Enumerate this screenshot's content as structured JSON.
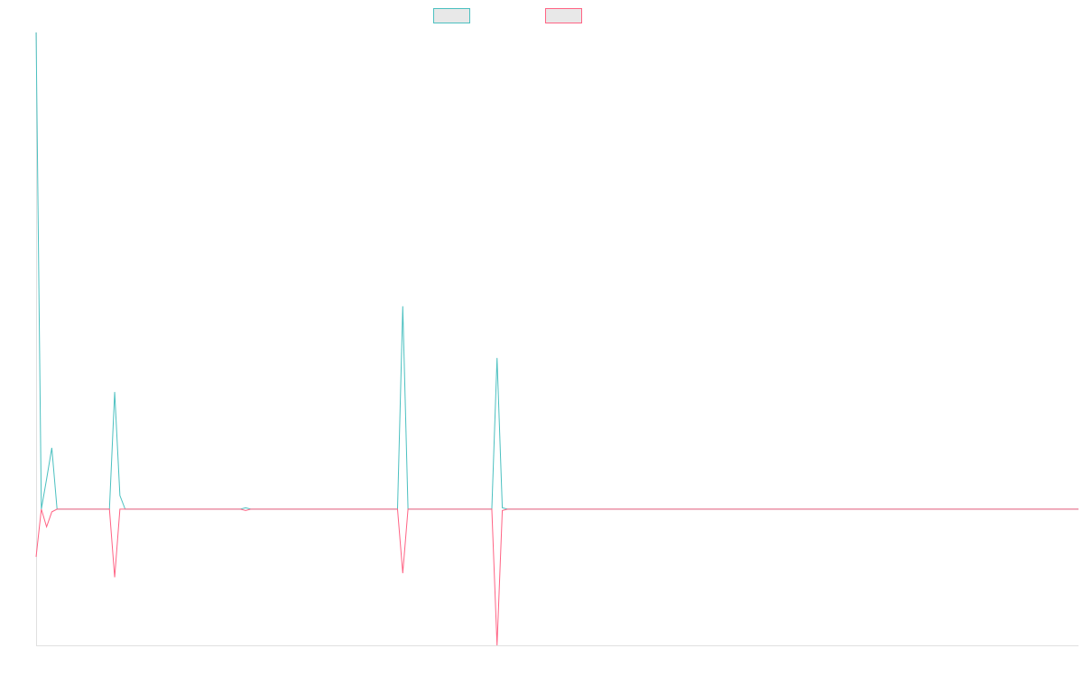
{
  "chart_data": {
    "type": "line",
    "ylim": [
      -1,
      3.5
    ],
    "series": [
      {
        "color": "#4bc0c0",
        "values": [
          3.5,
          0,
          0.22,
          0.45,
          0,
          0,
          0,
          0,
          0,
          0,
          0,
          0,
          0,
          0,
          0,
          0.86,
          0.1,
          0,
          0,
          0,
          0,
          0,
          0,
          0,
          0,
          0,
          0,
          0,
          0,
          0,
          0,
          0,
          0,
          0,
          0,
          0,
          0,
          0,
          0,
          0,
          0.01,
          0,
          0,
          0,
          0,
          0,
          0,
          0,
          0,
          0,
          0,
          0,
          0,
          0,
          0,
          0,
          0,
          0,
          0,
          0,
          0,
          0,
          0,
          0,
          0,
          0,
          0,
          0,
          0,
          0,
          1.49,
          0,
          0,
          0,
          0,
          0,
          0,
          0,
          0,
          0,
          0,
          0,
          0,
          0,
          0,
          0,
          0,
          0,
          1.11,
          0.01,
          0,
          0,
          0,
          0,
          0,
          0,
          0,
          0,
          0,
          0,
          0,
          0,
          0,
          0,
          0,
          0,
          0,
          0,
          0,
          0,
          0,
          0,
          0,
          0,
          0,
          0,
          0,
          0,
          0,
          0,
          0,
          0,
          0,
          0,
          0,
          0,
          0,
          0,
          0,
          0,
          0,
          0,
          0,
          0,
          0,
          0,
          0,
          0,
          0,
          0,
          0,
          0,
          0,
          0,
          0,
          0,
          0,
          0,
          0,
          0,
          0,
          0,
          0,
          0,
          0,
          0,
          0,
          0,
          0,
          0,
          0,
          0,
          0,
          0,
          0,
          0,
          0,
          0,
          0,
          0,
          0,
          0,
          0,
          0,
          0,
          0,
          0,
          0,
          0,
          0,
          0,
          0,
          0,
          0,
          0,
          0,
          0,
          0,
          0,
          0,
          0,
          0,
          0,
          0,
          0,
          0,
          0,
          0,
          0,
          0
        ]
      },
      {
        "color": "#ff6384",
        "values": [
          -0.35,
          0,
          -0.13,
          -0.02,
          0,
          0,
          0,
          0,
          0,
          0,
          0,
          0,
          0,
          0,
          0,
          -0.5,
          0,
          0,
          0,
          0,
          0,
          0,
          0,
          0,
          0,
          0,
          0,
          0,
          0,
          0,
          0,
          0,
          0,
          0,
          0,
          0,
          0,
          0,
          0,
          0,
          -0.01,
          0,
          0,
          0,
          0,
          0,
          0,
          0,
          0,
          0,
          0,
          0,
          0,
          0,
          0,
          0,
          0,
          0,
          0,
          0,
          0,
          0,
          0,
          0,
          0,
          0,
          0,
          0,
          0,
          0,
          -0.47,
          0,
          0,
          0,
          0,
          0,
          0,
          0,
          0,
          0,
          0,
          0,
          0,
          0,
          0,
          0,
          0,
          0,
          -1.0,
          -0.01,
          0,
          0,
          0,
          0,
          0,
          0,
          0,
          0,
          0,
          0,
          0,
          0,
          0,
          0,
          0,
          0,
          0,
          0,
          0,
          0,
          0,
          0,
          0,
          0,
          0,
          0,
          0,
          0,
          0,
          0,
          0,
          0,
          0,
          0,
          0,
          0,
          0,
          0,
          0,
          0,
          0,
          0,
          0,
          0,
          0,
          0,
          0,
          0,
          0,
          0,
          0,
          0,
          0,
          0,
          0,
          0,
          0,
          0,
          0,
          0,
          0,
          0,
          0,
          0,
          0,
          0,
          0,
          0,
          0,
          0,
          0,
          0,
          0,
          0,
          0,
          0,
          0,
          0,
          0,
          0,
          0,
          0,
          0,
          0,
          0,
          0,
          0,
          0,
          0,
          0,
          0,
          0,
          0,
          0,
          0,
          0,
          0,
          0,
          0,
          0,
          0,
          0,
          0,
          0,
          0,
          0,
          0,
          0,
          0,
          0
        ]
      }
    ]
  }
}
